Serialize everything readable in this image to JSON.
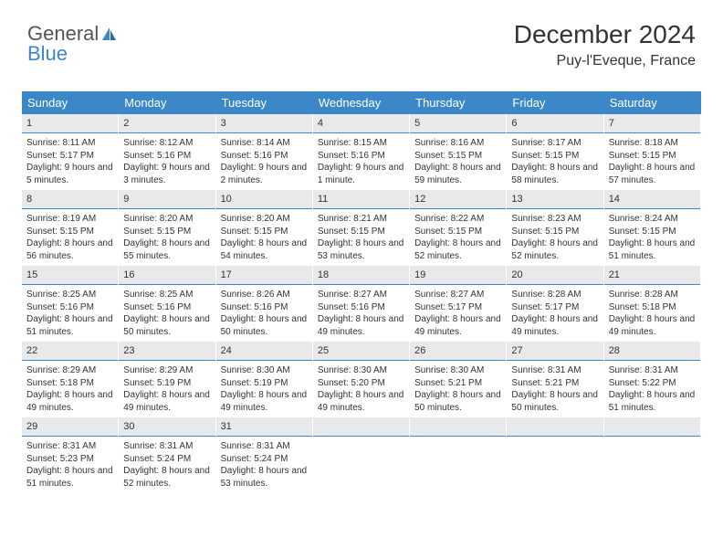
{
  "logo": {
    "text1": "General",
    "text2": "Blue"
  },
  "header": {
    "month": "December 2024",
    "location": "Puy-l'Eveque, France"
  },
  "colors": {
    "header_bg": "#3b87c8",
    "daynum_bg": "#e7e9eb",
    "daynum_border": "#3b87c8",
    "text": "#333333"
  },
  "day_headers": [
    "Sunday",
    "Monday",
    "Tuesday",
    "Wednesday",
    "Thursday",
    "Friday",
    "Saturday"
  ],
  "weeks": [
    [
      {
        "n": "1",
        "sunrise": "Sunrise: 8:11 AM",
        "sunset": "Sunset: 5:17 PM",
        "daylight": "Daylight: 9 hours and 5 minutes."
      },
      {
        "n": "2",
        "sunrise": "Sunrise: 8:12 AM",
        "sunset": "Sunset: 5:16 PM",
        "daylight": "Daylight: 9 hours and 3 minutes."
      },
      {
        "n": "3",
        "sunrise": "Sunrise: 8:14 AM",
        "sunset": "Sunset: 5:16 PM",
        "daylight": "Daylight: 9 hours and 2 minutes."
      },
      {
        "n": "4",
        "sunrise": "Sunrise: 8:15 AM",
        "sunset": "Sunset: 5:16 PM",
        "daylight": "Daylight: 9 hours and 1 minute."
      },
      {
        "n": "5",
        "sunrise": "Sunrise: 8:16 AM",
        "sunset": "Sunset: 5:15 PM",
        "daylight": "Daylight: 8 hours and 59 minutes."
      },
      {
        "n": "6",
        "sunrise": "Sunrise: 8:17 AM",
        "sunset": "Sunset: 5:15 PM",
        "daylight": "Daylight: 8 hours and 58 minutes."
      },
      {
        "n": "7",
        "sunrise": "Sunrise: 8:18 AM",
        "sunset": "Sunset: 5:15 PM",
        "daylight": "Daylight: 8 hours and 57 minutes."
      }
    ],
    [
      {
        "n": "8",
        "sunrise": "Sunrise: 8:19 AM",
        "sunset": "Sunset: 5:15 PM",
        "daylight": "Daylight: 8 hours and 56 minutes."
      },
      {
        "n": "9",
        "sunrise": "Sunrise: 8:20 AM",
        "sunset": "Sunset: 5:15 PM",
        "daylight": "Daylight: 8 hours and 55 minutes."
      },
      {
        "n": "10",
        "sunrise": "Sunrise: 8:20 AM",
        "sunset": "Sunset: 5:15 PM",
        "daylight": "Daylight: 8 hours and 54 minutes."
      },
      {
        "n": "11",
        "sunrise": "Sunrise: 8:21 AM",
        "sunset": "Sunset: 5:15 PM",
        "daylight": "Daylight: 8 hours and 53 minutes."
      },
      {
        "n": "12",
        "sunrise": "Sunrise: 8:22 AM",
        "sunset": "Sunset: 5:15 PM",
        "daylight": "Daylight: 8 hours and 52 minutes."
      },
      {
        "n": "13",
        "sunrise": "Sunrise: 8:23 AM",
        "sunset": "Sunset: 5:15 PM",
        "daylight": "Daylight: 8 hours and 52 minutes."
      },
      {
        "n": "14",
        "sunrise": "Sunrise: 8:24 AM",
        "sunset": "Sunset: 5:15 PM",
        "daylight": "Daylight: 8 hours and 51 minutes."
      }
    ],
    [
      {
        "n": "15",
        "sunrise": "Sunrise: 8:25 AM",
        "sunset": "Sunset: 5:16 PM",
        "daylight": "Daylight: 8 hours and 51 minutes."
      },
      {
        "n": "16",
        "sunrise": "Sunrise: 8:25 AM",
        "sunset": "Sunset: 5:16 PM",
        "daylight": "Daylight: 8 hours and 50 minutes."
      },
      {
        "n": "17",
        "sunrise": "Sunrise: 8:26 AM",
        "sunset": "Sunset: 5:16 PM",
        "daylight": "Daylight: 8 hours and 50 minutes."
      },
      {
        "n": "18",
        "sunrise": "Sunrise: 8:27 AM",
        "sunset": "Sunset: 5:16 PM",
        "daylight": "Daylight: 8 hours and 49 minutes."
      },
      {
        "n": "19",
        "sunrise": "Sunrise: 8:27 AM",
        "sunset": "Sunset: 5:17 PM",
        "daylight": "Daylight: 8 hours and 49 minutes."
      },
      {
        "n": "20",
        "sunrise": "Sunrise: 8:28 AM",
        "sunset": "Sunset: 5:17 PM",
        "daylight": "Daylight: 8 hours and 49 minutes."
      },
      {
        "n": "21",
        "sunrise": "Sunrise: 8:28 AM",
        "sunset": "Sunset: 5:18 PM",
        "daylight": "Daylight: 8 hours and 49 minutes."
      }
    ],
    [
      {
        "n": "22",
        "sunrise": "Sunrise: 8:29 AM",
        "sunset": "Sunset: 5:18 PM",
        "daylight": "Daylight: 8 hours and 49 minutes."
      },
      {
        "n": "23",
        "sunrise": "Sunrise: 8:29 AM",
        "sunset": "Sunset: 5:19 PM",
        "daylight": "Daylight: 8 hours and 49 minutes."
      },
      {
        "n": "24",
        "sunrise": "Sunrise: 8:30 AM",
        "sunset": "Sunset: 5:19 PM",
        "daylight": "Daylight: 8 hours and 49 minutes."
      },
      {
        "n": "25",
        "sunrise": "Sunrise: 8:30 AM",
        "sunset": "Sunset: 5:20 PM",
        "daylight": "Daylight: 8 hours and 49 minutes."
      },
      {
        "n": "26",
        "sunrise": "Sunrise: 8:30 AM",
        "sunset": "Sunset: 5:21 PM",
        "daylight": "Daylight: 8 hours and 50 minutes."
      },
      {
        "n": "27",
        "sunrise": "Sunrise: 8:31 AM",
        "sunset": "Sunset: 5:21 PM",
        "daylight": "Daylight: 8 hours and 50 minutes."
      },
      {
        "n": "28",
        "sunrise": "Sunrise: 8:31 AM",
        "sunset": "Sunset: 5:22 PM",
        "daylight": "Daylight: 8 hours and 51 minutes."
      }
    ],
    [
      {
        "n": "29",
        "sunrise": "Sunrise: 8:31 AM",
        "sunset": "Sunset: 5:23 PM",
        "daylight": "Daylight: 8 hours and 51 minutes."
      },
      {
        "n": "30",
        "sunrise": "Sunrise: 8:31 AM",
        "sunset": "Sunset: 5:24 PM",
        "daylight": "Daylight: 8 hours and 52 minutes."
      },
      {
        "n": "31",
        "sunrise": "Sunrise: 8:31 AM",
        "sunset": "Sunset: 5:24 PM",
        "daylight": "Daylight: 8 hours and 53 minutes."
      },
      {
        "empty": true
      },
      {
        "empty": true
      },
      {
        "empty": true
      },
      {
        "empty": true
      }
    ]
  ]
}
